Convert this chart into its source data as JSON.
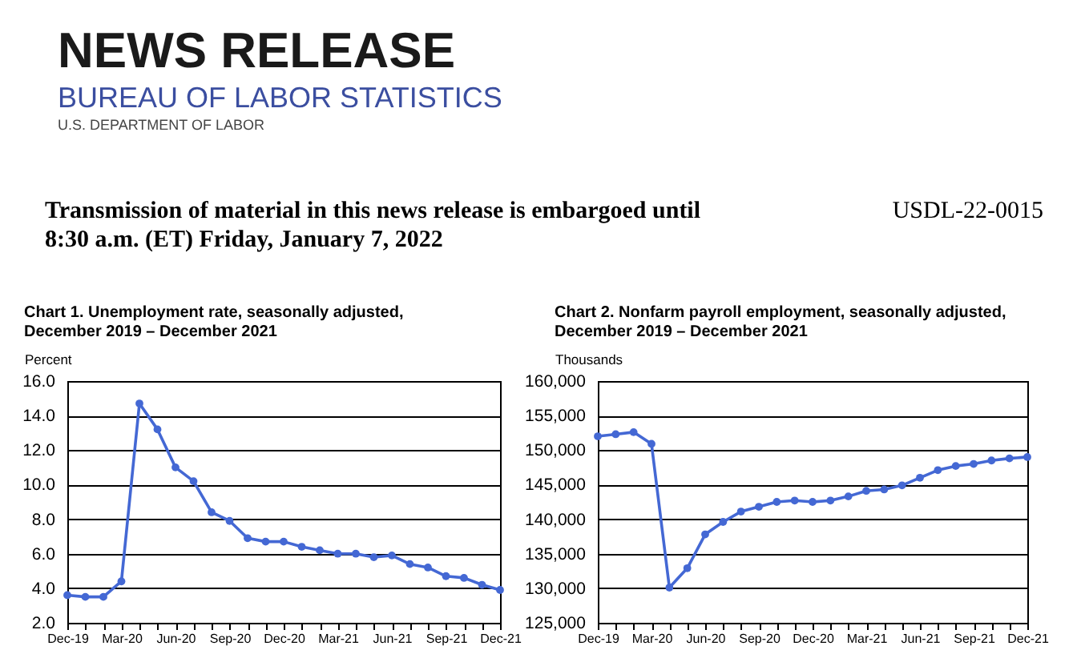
{
  "chart_data": [
    {
      "type": "other",
      "title": "NEWS RELEASE",
      "subtitle": "BUREAU OF LABOR STATISTICS",
      "annotations": [
        "U.S. DEPARTMENT OF LABOR",
        "Transmission of material in this news release is embargoed until 8:30 a.m. (ET) Friday, January 7, 2022",
        "USDL-22-0015"
      ]
    },
    {
      "type": "line",
      "title": "Chart 1. Unemployment rate, seasonally adjusted, December 2019 – December 2021",
      "ylabel": "Percent",
      "categories": [
        "Dec-19",
        null,
        null,
        "Mar-20",
        null,
        null,
        "Jun-20",
        null,
        null,
        "Sep-20",
        null,
        null,
        "Dec-20",
        null,
        null,
        "Mar-21",
        null,
        null,
        "Jun-21",
        null,
        null,
        "Sep-21",
        null,
        null,
        "Dec-21"
      ],
      "series": [
        {
          "color": "#4468d4",
          "values": [
            3.6,
            3.5,
            3.5,
            4.4,
            14.7,
            13.2,
            11.0,
            10.2,
            8.4,
            7.9,
            6.9,
            6.7,
            6.7,
            6.4,
            6.2,
            6.0,
            6.0,
            5.8,
            5.9,
            5.4,
            5.2,
            4.7,
            4.6,
            4.2,
            3.9
          ]
        }
      ],
      "ylim": [
        2,
        16
      ],
      "yticks": [
        {
          "value": 2,
          "label": "2.0"
        },
        {
          "value": 4,
          "label": "4.0"
        },
        {
          "value": 6,
          "label": "6.0"
        },
        {
          "value": 8,
          "label": "8.0"
        },
        {
          "value": 10,
          "label": "10.0"
        },
        {
          "value": 12,
          "label": "12.0"
        },
        {
          "value": 14,
          "label": "14.0"
        },
        {
          "value": 16,
          "label": "16.0"
        }
      ],
      "grid": "y",
      "marker": "circle",
      "line_style": "solid"
    },
    {
      "type": "line",
      "title": "Chart 2. Nonfarm payroll employment, seasonally adjusted, December 2019 – December 2021",
      "ylabel": "Thousands",
      "categories": [
        "Dec-19",
        null,
        null,
        "Mar-20",
        null,
        null,
        "Jun-20",
        null,
        null,
        "Sep-20",
        null,
        null,
        "Dec-20",
        null,
        null,
        "Mar-21",
        null,
        null,
        "Jun-21",
        null,
        null,
        "Sep-21",
        null,
        null,
        "Dec-21"
      ],
      "series": [
        {
          "color": "#4468d4",
          "values": [
            152000,
            152300,
            152600,
            150900,
            130100,
            132900,
            137800,
            139600,
            141100,
            141800,
            142500,
            142700,
            142500,
            142700,
            143300,
            144100,
            144300,
            144900,
            146000,
            147100,
            147700,
            148000,
            148500,
            148800,
            149000
          ]
        }
      ],
      "ylim": [
        125000,
        160000
      ],
      "yticks": [
        {
          "value": 125000,
          "label": "125,000"
        },
        {
          "value": 130000,
          "label": "130,000"
        },
        {
          "value": 135000,
          "label": "135,000"
        },
        {
          "value": 140000,
          "label": "140,000"
        },
        {
          "value": 145000,
          "label": "145,000"
        },
        {
          "value": 150000,
          "label": "150,000"
        },
        {
          "value": 155000,
          "label": "155,000"
        },
        {
          "value": 160000,
          "label": "160,000"
        }
      ],
      "grid": "y",
      "marker": "circle",
      "line_style": "solid"
    }
  ]
}
